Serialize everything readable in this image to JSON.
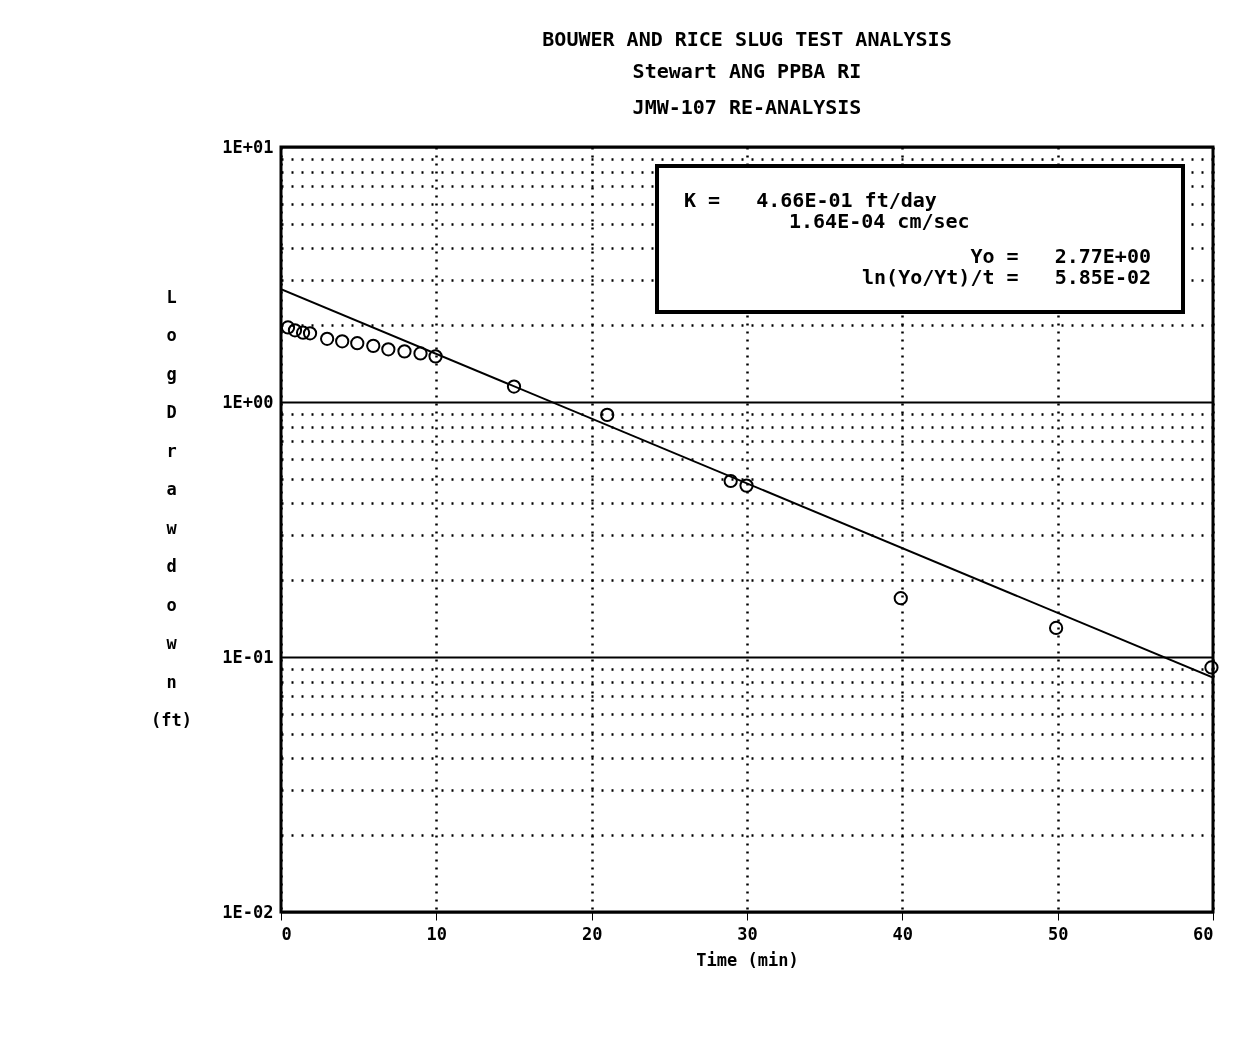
{
  "chart_data": {
    "type": "scatter",
    "title": "BOUWER AND RICE SLUG TEST ANALYSIS",
    "subtitle": "Stewart ANG PPBA RI\nJMW-107 RE-ANALYSIS",
    "xlabel": "Time (min)",
    "ylabel": "Log Drawdown (ft)",
    "log": "y",
    "grid": true,
    "marker": "circle",
    "xlim": [
      0,
      60
    ],
    "xticks": [
      0,
      10,
      20,
      30,
      40,
      50,
      60
    ],
    "ylim": [
      0.01,
      10
    ],
    "yticks": [
      {
        "value": 0.01,
        "label": "1E-02"
      },
      {
        "value": 0.1,
        "label": "1E-01"
      },
      {
        "value": 1,
        "label": "1E+00"
      },
      {
        "value": 10,
        "label": "1E+01"
      }
    ],
    "annotations": [
      "K =   4.66E-01 ft/day",
      "1.64E-04 cm/sec",
      "Yo =   2.77E+00",
      "ln(Yo/Yt)/t =   5.85E-02"
    ],
    "series": [
      {
        "color": "#000000",
        "x": [
          0.45,
          0.9,
          1.42,
          1.87,
          2.97,
          3.94,
          4.91,
          5.94,
          6.91,
          7.95,
          8.98,
          9.95,
          15.0,
          21.0,
          28.95,
          29.97,
          39.9,
          49.9,
          59.9
        ],
        "values": [
          1.96,
          1.91,
          1.87,
          1.86,
          1.77,
          1.73,
          1.7,
          1.66,
          1.61,
          1.58,
          1.55,
          1.51,
          1.15,
          0.89,
          0.49,
          0.47,
          0.17,
          0.13,
          0.091
        ]
      },
      {
        "type": "line",
        "color": "#000000",
        "marker": "none",
        "x": [
          0,
          60
        ],
        "values": [
          2.77,
          0.083
        ]
      }
    ]
  }
}
